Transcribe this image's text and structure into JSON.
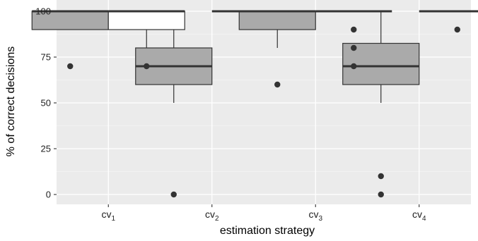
{
  "chart_data": {
    "type": "boxplot",
    "xlabel": "estimation strategy",
    "ylabel": "% of correct decisions",
    "ylim": [
      0,
      100
    ],
    "yticks": [
      0,
      25,
      50,
      75,
      100
    ],
    "grid": true,
    "legend": "none",
    "colors": {
      "panel": "#ebebeb",
      "grid_major": "#ffffff",
      "grid_minor": "#f5f5f5",
      "box_fill_gray": "#aaaaaa",
      "box_fill_white": "#ffffff",
      "line": "#333333"
    },
    "categories": [
      {
        "base": "cv",
        "sub": "1"
      },
      {
        "base": "cv",
        "sub": "2"
      },
      {
        "base": "cv",
        "sub": "3"
      },
      {
        "base": "cv",
        "sub": "4"
      }
    ],
    "series": [
      {
        "fill": "#aaaaaa",
        "boxes": [
          {
            "lower_whisker": 90,
            "q1": 90,
            "median": 100,
            "q3": 100,
            "upper_whisker": 100,
            "outliers": [
              70
            ]
          },
          {
            "lower_whisker": 50,
            "q1": 60,
            "median": 70,
            "q3": 80,
            "upper_whisker": 100,
            "outliers": [
              0
            ]
          },
          {
            "lower_whisker": 80,
            "q1": 90,
            "median": 100,
            "q3": 100,
            "upper_whisker": 100,
            "outliers": [
              60
            ]
          },
          {
            "lower_whisker": 50,
            "q1": 60,
            "median": 70,
            "q3": 82.5,
            "upper_whisker": 100,
            "outliers": [
              10,
              0
            ]
          }
        ]
      },
      {
        "fill": "#ffffff",
        "boxes": [
          {
            "lower_whisker": 80,
            "q1": 90,
            "median": 100,
            "q3": 100,
            "upper_whisker": 100,
            "outliers": [
              70
            ]
          },
          {
            "lower_whisker": 100,
            "q1": 100,
            "median": 100,
            "q3": 100,
            "upper_whisker": 100,
            "outliers": []
          },
          {
            "lower_whisker": 100,
            "q1": 100,
            "median": 100,
            "q3": 100,
            "upper_whisker": 100,
            "outliers": [
              90,
              80,
              70
            ]
          },
          {
            "lower_whisker": 100,
            "q1": 100,
            "median": 100,
            "q3": 100,
            "upper_whisker": 100,
            "outliers": [
              90
            ]
          }
        ]
      }
    ]
  }
}
